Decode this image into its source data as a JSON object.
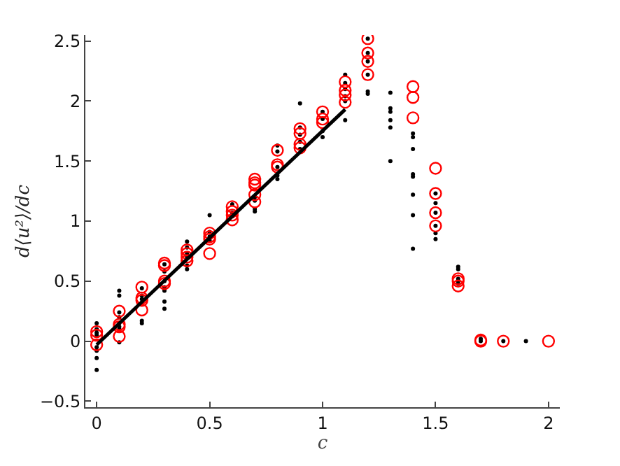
{
  "chart_data": {
    "type": "scatter",
    "xlabel": "c",
    "ylabel": "d⟨u²⟩/dc",
    "xlim": [
      -0.05,
      2.05
    ],
    "xticks": [
      0,
      0.5,
      1,
      1.5,
      2
    ],
    "ylim": [
      -0.55,
      2.55
    ],
    "yticks": [
      -0.5,
      0,
      0.5,
      1,
      1.5,
      2,
      2.5
    ],
    "series": [
      {
        "marker": "circle",
        "color": "#000000",
        "x": [
          0,
          0,
          0,
          0,
          0,
          0,
          0,
          0,
          0.1,
          0.1,
          0.1,
          0.1,
          0.1,
          0.1,
          0.1,
          0.1,
          0.2,
          0.2,
          0.2,
          0.2,
          0.2,
          0.2,
          0.3,
          0.3,
          0.3,
          0.3,
          0.3,
          0.3,
          0.3,
          0.4,
          0.4,
          0.4,
          0.4,
          0.4,
          0.4,
          0.5,
          0.5,
          0.5,
          0.5,
          0.6,
          0.6,
          0.6,
          0.7,
          0.7,
          0.7,
          0.7,
          0.8,
          0.8,
          0.8,
          0.8,
          0.8,
          0.9,
          0.9,
          0.9,
          0.9,
          0.9,
          1.0,
          1.0,
          1.0,
          1.0,
          1.1,
          1.1,
          1.1,
          1.1,
          1.1,
          1.1,
          1.2,
          1.2,
          1.2,
          1.2,
          1.2,
          1.2,
          1.3,
          1.3,
          1.3,
          1.3,
          1.3,
          1.3,
          1.4,
          1.4,
          1.4,
          1.4,
          1.4,
          1.4,
          1.4,
          1.4,
          1.5,
          1.5,
          1.5,
          1.5,
          1.5,
          1.5,
          1.6,
          1.6,
          1.6,
          1.6,
          1.6,
          1.7,
          1.7,
          1.8,
          1.9
        ],
        "values": [
          0.15,
          0.1,
          0.07,
          0.05,
          -0.05,
          -0.08,
          -0.14,
          -0.24,
          0.42,
          0.38,
          0.24,
          0.2,
          0.15,
          0.12,
          0.1,
          -0.01,
          0.44,
          0.38,
          0.35,
          0.32,
          0.17,
          0.15,
          0.64,
          0.58,
          0.5,
          0.45,
          0.42,
          0.33,
          0.27,
          0.83,
          0.78,
          0.73,
          0.7,
          0.63,
          0.6,
          1.05,
          0.91,
          0.87,
          0.84,
          1.14,
          1.07,
          1.04,
          1.2,
          1.17,
          1.1,
          1.08,
          1.63,
          1.58,
          1.45,
          1.38,
          1.35,
          1.98,
          1.78,
          1.72,
          1.66,
          1.6,
          1.91,
          1.85,
          1.75,
          1.7,
          2.22,
          2.15,
          2.1,
          2.04,
          2.0,
          1.84,
          2.52,
          2.4,
          2.33,
          2.22,
          2.08,
          2.06,
          2.07,
          1.94,
          1.91,
          1.84,
          1.78,
          1.5,
          1.73,
          1.7,
          1.6,
          1.39,
          1.37,
          1.22,
          1.05,
          0.77,
          1.23,
          1.15,
          1.07,
          0.96,
          0.9,
          0.85,
          0.62,
          0.6,
          0.52,
          0.5,
          0.48,
          0.02,
          0,
          0,
          0
        ]
      },
      {
        "marker": "circle-open",
        "color": "#ff0000",
        "x": [
          0,
          0,
          0,
          0.1,
          0.1,
          0.1,
          0.1,
          0.2,
          0.2,
          0.2,
          0.2,
          0.3,
          0.3,
          0.3,
          0.3,
          0.4,
          0.4,
          0.4,
          0.4,
          0.5,
          0.5,
          0.5,
          0.5,
          0.6,
          0.6,
          0.6,
          0.6,
          0.7,
          0.7,
          0.7,
          0.7,
          0.7,
          0.8,
          0.8,
          0.8,
          0.9,
          0.9,
          0.9,
          0.9,
          1.0,
          1.0,
          1.0,
          1.1,
          1.1,
          1.1,
          1.1,
          1.2,
          1.2,
          1.2,
          1.2,
          1.4,
          1.4,
          1.4,
          1.5,
          1.5,
          1.5,
          1.5,
          1.6,
          1.6,
          1.6,
          1.7,
          1.7,
          1.8,
          2.0
        ],
        "values": [
          0.08,
          0.05,
          -0.03,
          0.25,
          0.14,
          0.12,
          0.04,
          0.45,
          0.36,
          0.34,
          0.26,
          0.65,
          0.63,
          0.5,
          0.48,
          0.76,
          0.73,
          0.7,
          0.67,
          0.9,
          0.87,
          0.85,
          0.73,
          1.12,
          1.08,
          1.05,
          1.01,
          1.35,
          1.32,
          1.3,
          1.22,
          1.16,
          1.59,
          1.47,
          1.45,
          1.77,
          1.73,
          1.64,
          1.61,
          1.91,
          1.85,
          1.82,
          2.16,
          2.09,
          2.05,
          1.99,
          2.52,
          2.4,
          2.33,
          2.22,
          2.12,
          2.03,
          1.86,
          1.44,
          1.23,
          1.07,
          0.96,
          0.52,
          0.5,
          0.46,
          0.01,
          0,
          0,
          0
        ]
      },
      {
        "type": "line",
        "marker": "none",
        "line_style": "solid",
        "color": "#000000",
        "x": [
          0,
          1.1
        ],
        "values": [
          -0.03,
          1.93
        ]
      }
    ]
  }
}
